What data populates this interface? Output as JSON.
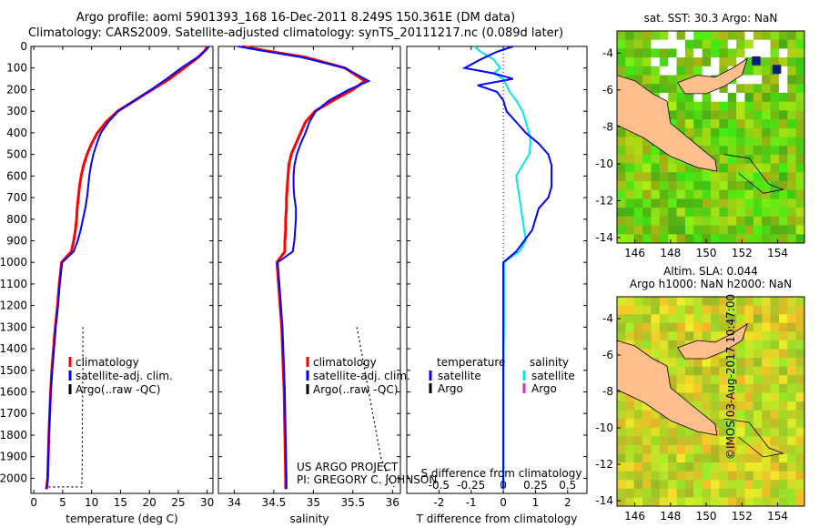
{
  "title": {
    "line1": "Argo profile: aoml 5901393_168 16-Dec-2011 8.249S 150.361E (DM data)",
    "line2": "Climatology: CARS2009. Satellite-adjusted climatology: synTS_20111217.nc (0.089d later)"
  },
  "footer": {
    "project": "US ARGO PROJECT",
    "pi": "PI: GREGORY C. JOHNSON",
    "stamp": "©IMOS 03-Aug-2017 10:47:00"
  },
  "colors": {
    "climatology": "#ff0000",
    "satellite": "#0000ff",
    "argo": "#000000",
    "sat_salinity": "#00e5ee",
    "argo_salinity": "#cc33cc",
    "land": "#ffbe8c"
  },
  "chart_data": [
    {
      "type": "line",
      "name": "temperature-panel",
      "xlabel": "temperature (deg C)",
      "ylabel": "",
      "xlim": [
        -0.5,
        31
      ],
      "ylim": [
        2070,
        0
      ],
      "xticks": [
        "0",
        "5",
        "10",
        "15",
        "20",
        "25",
        "30"
      ],
      "yticks": [
        "0",
        "100",
        "200",
        "300",
        "400",
        "500",
        "600",
        "700",
        "800",
        "900",
        "1000",
        "1100",
        "1200",
        "1300",
        "1400",
        "1500",
        "1600",
        "1700",
        "1800",
        "1900",
        "2000"
      ],
      "series": [
        {
          "name": "climatology",
          "x": [
            30,
            29.6,
            28.5,
            26,
            23.5,
            20.5,
            17.5,
            14.5,
            12.5,
            11,
            10,
            9.2,
            8.6,
            8.2,
            7.9,
            7.7,
            7.5,
            7.4,
            7.2,
            6.9,
            6.5,
            4.8,
            4.4,
            4.1,
            3.7,
            3.4,
            3.1,
            2.9,
            2.6,
            2.4,
            2.2
          ],
          "y": [
            0,
            20,
            50,
            100,
            150,
            200,
            250,
            300,
            350,
            400,
            450,
            500,
            550,
            600,
            650,
            700,
            750,
            800,
            850,
            900,
            950,
            1000,
            1100,
            1200,
            1300,
            1400,
            1500,
            1600,
            1800,
            2000,
            2050
          ]
        },
        {
          "name": "satellite-adj. clim.",
          "x": [
            30.3,
            29.7,
            28.3,
            25.5,
            23,
            20.3,
            17.4,
            14.6,
            12.9,
            11.6,
            10.9,
            10.3,
            9.9,
            9.6,
            9.4,
            9.2,
            8.9,
            8.5,
            8.1,
            7.6,
            6.9,
            4.9,
            4.5,
            4.2,
            3.8,
            3.5,
            3.2,
            2.9,
            2.6,
            2.4,
            2.2
          ],
          "y": [
            0,
            20,
            50,
            100,
            150,
            200,
            250,
            300,
            350,
            400,
            450,
            500,
            550,
            600,
            650,
            700,
            750,
            800,
            850,
            900,
            950,
            1000,
            1100,
            1200,
            1300,
            1400,
            1500,
            1600,
            1800,
            2000,
            2050
          ]
        },
        {
          "name": "Argo(..raw -QC)",
          "x": [
            8.5,
            8.5,
            8.4,
            8.4,
            8.3,
            2.3
          ],
          "y": [
            1300,
            1500,
            1700,
            1900,
            2040,
            2040
          ]
        }
      ],
      "legend": [
        "climatology",
        "satellite-adj. clim.",
        "Argo(..raw -QC)"
      ]
    },
    {
      "type": "line",
      "name": "salinity-panel",
      "xlabel": "salinity",
      "ylabel": "",
      "xlim": [
        33.8,
        36.1
      ],
      "ylim": [
        2070,
        0
      ],
      "xticks": [
        "34",
        "34.5",
        "35",
        "35.5",
        "36"
      ],
      "series": [
        {
          "name": "climatology",
          "x": [
            34.1,
            34.4,
            34.9,
            35.4,
            35.65,
            35.5,
            35.25,
            35.02,
            34.9,
            34.84,
            34.78,
            34.72,
            34.69,
            34.68,
            34.67,
            34.66,
            34.66,
            34.65,
            34.65,
            34.64,
            34.64,
            34.54,
            34.56,
            34.58,
            34.6,
            34.61,
            34.62,
            34.63,
            34.64,
            34.65,
            34.65
          ],
          "y": [
            0,
            20,
            50,
            100,
            160,
            200,
            250,
            300,
            350,
            400,
            450,
            500,
            550,
            600,
            650,
            700,
            750,
            800,
            850,
            900,
            950,
            1000,
            1100,
            1200,
            1300,
            1400,
            1500,
            1600,
            1800,
            2000,
            2050
          ]
        },
        {
          "name": "satellite-adj. clim.",
          "x": [
            34.05,
            34.35,
            34.85,
            35.4,
            35.7,
            35.45,
            35.2,
            35.03,
            34.95,
            34.9,
            34.84,
            34.79,
            34.76,
            34.75,
            34.75,
            34.76,
            34.78,
            34.78,
            34.77,
            34.76,
            34.74,
            34.55,
            34.57,
            34.59,
            34.61,
            34.62,
            34.63,
            34.64,
            34.65,
            34.66,
            34.66
          ],
          "y": [
            0,
            20,
            50,
            100,
            160,
            200,
            250,
            300,
            350,
            400,
            450,
            500,
            550,
            600,
            650,
            700,
            750,
            800,
            850,
            900,
            950,
            1000,
            1100,
            1200,
            1300,
            1400,
            1500,
            1600,
            1800,
            2000,
            2050
          ]
        },
        {
          "name": "Argo(..raw -QC)",
          "x": [
            35.55,
            35.65,
            35.75,
            35.85,
            35.95,
            36.02
          ],
          "y": [
            1300,
            1500,
            1700,
            1900,
            2000,
            2040
          ]
        }
      ],
      "legend": [
        "climatology",
        "satellite-adj. clim.",
        "Argo(..raw -QC)"
      ]
    },
    {
      "type": "line",
      "name": "difference-panel",
      "xlabel": "T difference from climatology",
      "x2label": "S difference from climatology",
      "xlim": [
        -3,
        2.6
      ],
      "ylim": [
        2070,
        0
      ],
      "xticks": [
        "-2",
        "-1",
        "0",
        "1",
        "2"
      ],
      "x2ticks": [
        "-0.5",
        "-0.25",
        "0",
        "0.25",
        "0.5"
      ],
      "series": [
        {
          "name": "temperature satellite",
          "x": [
            0.3,
            -0.2,
            -0.7,
            -1.2,
            -0.3,
            0.3,
            -0.8,
            -0.2,
            0,
            0.1,
            0.4,
            0.7,
            1.1,
            1.4,
            1.5,
            1.5,
            1.5,
            1.4,
            1.1,
            0.9,
            0.4,
            0,
            0,
            0,
            0,
            0,
            0,
            0,
            0
          ],
          "y": [
            0,
            25,
            60,
            100,
            125,
            150,
            180,
            210,
            250,
            300,
            350,
            400,
            450,
            500,
            550,
            600,
            650,
            700,
            750,
            850,
            950,
            1000,
            1100,
            1300,
            1500,
            1700,
            1900,
            2000,
            2050
          ]
        },
        {
          "name": "salinity satellite",
          "x": [
            -0.9,
            -0.7,
            -0.3,
            -0.1,
            -0.3,
            0,
            0.1,
            0.2,
            0.4,
            0.6,
            0.7,
            0.8,
            0.85,
            0.8,
            0.6,
            0.4,
            0.5,
            0.6,
            0.7,
            0.5,
            0.2,
            0.02,
            0.02,
            0.02,
            0.01,
            0.01,
            0.01,
            0.01
          ],
          "y": [
            0,
            25,
            60,
            100,
            125,
            150,
            180,
            210,
            250,
            300,
            350,
            400,
            450,
            500,
            550,
            600,
            700,
            800,
            900,
            950,
            980,
            1000,
            1100,
            1300,
            1500,
            1700,
            1900,
            2050
          ]
        }
      ],
      "legend_left_title": "temperature",
      "legend_right_title": "salinity",
      "legend": [
        "satellite",
        "Argo",
        "satellite",
        "Argo"
      ]
    },
    {
      "type": "heatmap",
      "name": "sst-map",
      "title": "sat. SST: 30.3 Argo: NaN",
      "xticks": [
        "146",
        "148",
        "150",
        "152",
        "154"
      ],
      "yticks": [
        "-4",
        "-6",
        "-8",
        "-10",
        "-12",
        "-14"
      ],
      "xlim": [
        145,
        155.5
      ],
      "ylim": [
        -14.3,
        -2.8
      ],
      "argo_position": [
        150.361,
        -8.249
      ]
    },
    {
      "type": "heatmap",
      "name": "sla-map",
      "title1": "Altim. SLA: 0.044",
      "title2": "Argo h1000: NaN h2000: NaN",
      "xticks": [
        "146",
        "148",
        "150",
        "152",
        "154"
      ],
      "yticks": [
        "-4",
        "-6",
        "-8",
        "-10",
        "-12",
        "-14"
      ],
      "xlim": [
        145,
        155.5
      ],
      "ylim": [
        -14.3,
        -2.8
      ]
    }
  ]
}
